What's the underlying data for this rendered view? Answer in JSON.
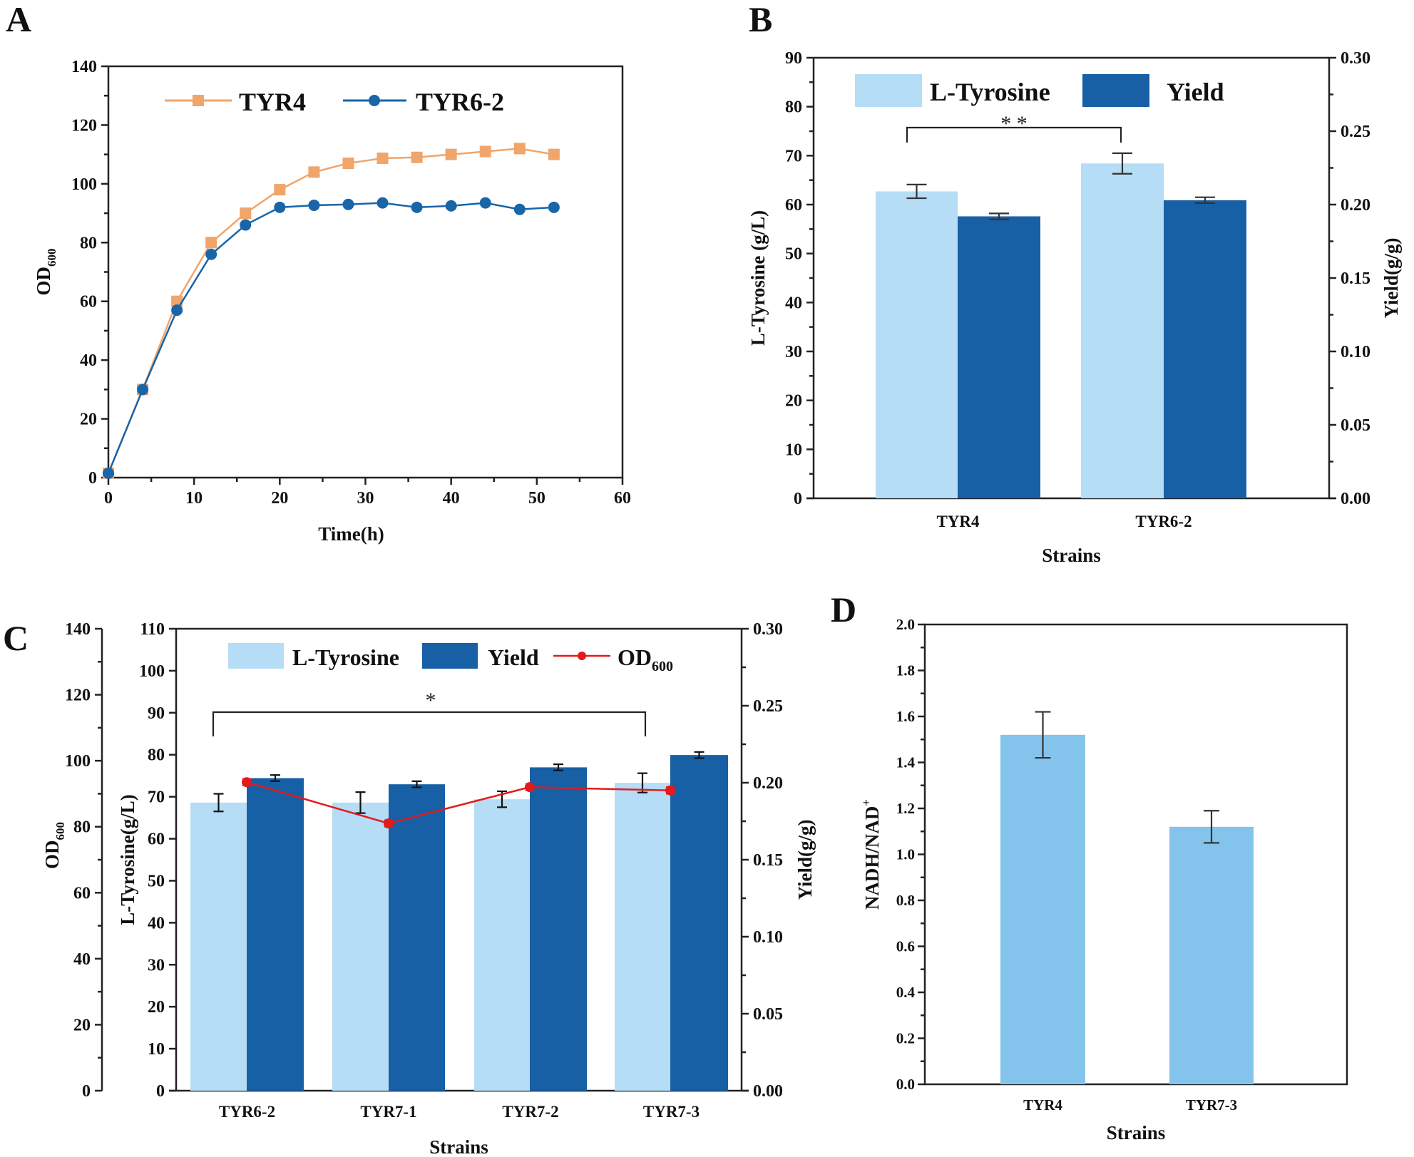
{
  "colors": {
    "tyr4_line": "#f0a56b",
    "tyr62_line": "#1865a8",
    "l_tyrosine_bar": "#b5ddf5",
    "yield_bar": "#1860a5",
    "od600_line": "#e31a1c",
    "nadh_bar": "#84c4ec"
  },
  "chart_data": [
    {
      "panel": "A",
      "type": "line",
      "xlabel": "Time(h)",
      "ylabel": "OD",
      "ylabel_sub": "600",
      "xlim": [
        0,
        60
      ],
      "ylim": [
        0,
        140
      ],
      "xticks": [
        "0",
        "10",
        "20",
        "30",
        "40",
        "50",
        "60"
      ],
      "yticks": [
        "0",
        "20",
        "40",
        "60",
        "80",
        "100",
        "120",
        "140"
      ],
      "legend_position": "top",
      "x": [
        0,
        4,
        8,
        12,
        16,
        20,
        24,
        28,
        32,
        36,
        40,
        44,
        48,
        52
      ],
      "series": [
        {
          "name": "TYR4",
          "marker": "square",
          "values": [
            1.5,
            30,
            60,
            80,
            90,
            98,
            104,
            107,
            108.7,
            109,
            110,
            111,
            112,
            110
          ]
        },
        {
          "name": "TYR6-2",
          "marker": "circle",
          "values": [
            1.5,
            30,
            57,
            76,
            86,
            92,
            92.7,
            93,
            93.5,
            92,
            92.5,
            93.5,
            91.3,
            92
          ]
        }
      ]
    },
    {
      "panel": "B",
      "type": "bar",
      "xlabel": "Strains",
      "ylabel": "L-Tyrosine (g/L)",
      "y2label": "Yield(g/g)",
      "categories": [
        "TYR4",
        "TYR6-2"
      ],
      "ylim": [
        0,
        90
      ],
      "y2lim": [
        0,
        0.3
      ],
      "yticks": [
        "0",
        "10",
        "20",
        "30",
        "40",
        "50",
        "60",
        "70",
        "80",
        "90"
      ],
      "y2ticks": [
        "0.00",
        "0.05",
        "0.10",
        "0.15",
        "0.20",
        "0.25",
        "0.30"
      ],
      "legend_position": "top",
      "series": [
        {
          "name": "L-Tyrosine",
          "axis": "left",
          "values": [
            62.7,
            68.4
          ],
          "errors": [
            1.4,
            2.1
          ]
        },
        {
          "name": "Yield",
          "axis": "right",
          "values": [
            0.192,
            0.203
          ],
          "errors": [
            0.002,
            0.002
          ]
        }
      ],
      "annotations": [
        {
          "text": "* *",
          "between": [
            "TYR4",
            "TYR6-2"
          ]
        }
      ]
    },
    {
      "panel": "C",
      "type": "bar",
      "xlabel": "Strains",
      "ylabel": "L-Tyrosine(g/L)",
      "y2label": "Yield(g/g)",
      "y3label": "OD",
      "y3label_sub": "600",
      "categories": [
        "TYR6-2",
        "TYR7-1",
        "TYR7-2",
        "TYR7-3"
      ],
      "ylim": [
        0,
        110
      ],
      "y2lim": [
        0,
        0.3
      ],
      "y3lim": [
        0,
        140
      ],
      "yticks": [
        "0",
        "10",
        "20",
        "30",
        "40",
        "50",
        "60",
        "70",
        "80",
        "90",
        "100",
        "110"
      ],
      "y2ticks": [
        "0.00",
        "0.05",
        "0.10",
        "0.15",
        "0.20",
        "0.25",
        "0.30"
      ],
      "y3ticks": [
        "0",
        "20",
        "40",
        "60",
        "80",
        "100",
        "120",
        "140"
      ],
      "legend_position": "top",
      "series": [
        {
          "name": "L-Tyrosine",
          "axis": "left",
          "values": [
            68.6,
            68.6,
            69.4,
            73.3
          ],
          "errors": [
            2.1,
            2.5,
            1.9,
            2.3
          ]
        },
        {
          "name": "Yield",
          "axis": "right",
          "values": [
            0.203,
            0.199,
            0.21,
            0.218
          ],
          "errors": [
            0.002,
            0.002,
            0.002,
            0.002
          ]
        },
        {
          "name": "OD",
          "name_sub": "600",
          "axis": "far-left",
          "type": "line",
          "values": [
            93.5,
            81,
            92,
            91
          ],
          "errors": [
            1,
            1,
            1,
            1
          ]
        }
      ],
      "annotations": [
        {
          "text": "*",
          "between": [
            "TYR6-2",
            "TYR7-3"
          ]
        }
      ]
    },
    {
      "panel": "D",
      "type": "bar",
      "xlabel": "Strains",
      "ylabel": "NADH/NAD",
      "ylabel_sup": "+",
      "categories": [
        "TYR4",
        "TYR7-3"
      ],
      "ylim": [
        0,
        2.0
      ],
      "yticks": [
        "0.0",
        "0.2",
        "0.4",
        "0.6",
        "0.8",
        "1.0",
        "1.2",
        "1.4",
        "1.6",
        "1.8",
        "2.0"
      ],
      "series": [
        {
          "name": "NADH/NAD+",
          "values": [
            1.52,
            1.12
          ],
          "errors": [
            0.1,
            0.07
          ]
        }
      ]
    }
  ],
  "panel_letters": [
    "A",
    "B",
    "C",
    "D"
  ]
}
